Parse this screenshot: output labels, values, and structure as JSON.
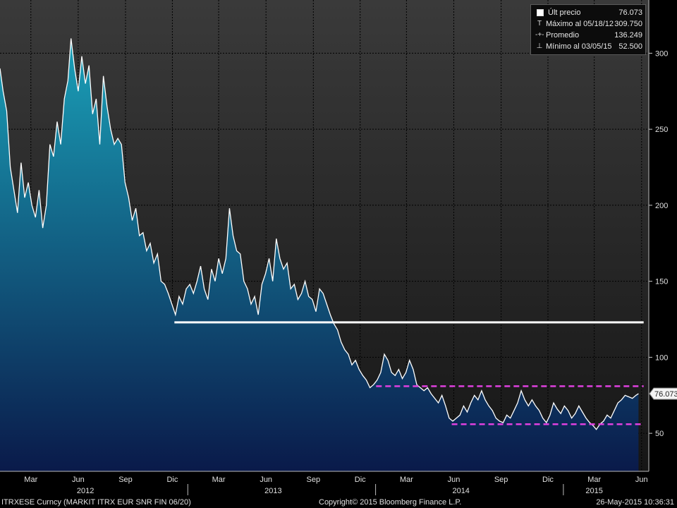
{
  "chart_data": {
    "type": "area",
    "x_unit": "date",
    "y_unit": "bp",
    "ylim": [
      25,
      335
    ],
    "y_ticks": [
      50,
      100,
      150,
      200,
      250,
      300
    ],
    "y_tick_labels": [
      "50",
      "100",
      "150",
      "200",
      "250",
      "300"
    ],
    "x_month_labels": [
      {
        "date": "2012-03-01",
        "label": "Mar"
      },
      {
        "date": "2012-06-01",
        "label": "Jun"
      },
      {
        "date": "2012-09-01",
        "label": "Sep"
      },
      {
        "date": "2012-12-01",
        "label": "Dic"
      },
      {
        "date": "2013-03-01",
        "label": "Mar"
      },
      {
        "date": "2013-06-01",
        "label": "Jun"
      },
      {
        "date": "2013-09-01",
        "label": "Sep"
      },
      {
        "date": "2013-12-01",
        "label": "Dic"
      },
      {
        "date": "2014-03-01",
        "label": "Mar"
      },
      {
        "date": "2014-06-01",
        "label": "Jun"
      },
      {
        "date": "2014-09-01",
        "label": "Sep"
      },
      {
        "date": "2014-12-01",
        "label": "Dic"
      },
      {
        "date": "2015-03-01",
        "label": "Mar"
      },
      {
        "date": "2015-06-01",
        "label": "Jun"
      }
    ],
    "x_year_labels": [
      {
        "date": "2012-06-15",
        "label": "2012"
      },
      {
        "date": "2013-06-15",
        "label": "2013"
      },
      {
        "date": "2014-06-15",
        "label": "2014"
      },
      {
        "date": "2015-03-01",
        "label": "2015"
      }
    ],
    "series": [
      {
        "name": "Últ precio",
        "color": "#ffffff",
        "area_gradient": [
          "#1aa0b8",
          "#0a1a4a"
        ],
        "points": [
          [
            "2012-01-01",
            290
          ],
          [
            "2012-01-07",
            275
          ],
          [
            "2012-01-14",
            262
          ],
          [
            "2012-01-21",
            225
          ],
          [
            "2012-01-28",
            210
          ],
          [
            "2012-02-04",
            195
          ],
          [
            "2012-02-11",
            228
          ],
          [
            "2012-02-18",
            205
          ],
          [
            "2012-02-25",
            215
          ],
          [
            "2012-03-03",
            200
          ],
          [
            "2012-03-10",
            192
          ],
          [
            "2012-03-17",
            210
          ],
          [
            "2012-03-24",
            185
          ],
          [
            "2012-03-31",
            200
          ],
          [
            "2012-04-07",
            240
          ],
          [
            "2012-04-14",
            232
          ],
          [
            "2012-04-21",
            255
          ],
          [
            "2012-04-28",
            240
          ],
          [
            "2012-05-05",
            270
          ],
          [
            "2012-05-12",
            282
          ],
          [
            "2012-05-18",
            309.75
          ],
          [
            "2012-05-25",
            290
          ],
          [
            "2012-06-01",
            275
          ],
          [
            "2012-06-08",
            298
          ],
          [
            "2012-06-15",
            280
          ],
          [
            "2012-06-22",
            292
          ],
          [
            "2012-06-29",
            260
          ],
          [
            "2012-07-06",
            270
          ],
          [
            "2012-07-13",
            240
          ],
          [
            "2012-07-20",
            285
          ],
          [
            "2012-07-27",
            265
          ],
          [
            "2012-08-03",
            250
          ],
          [
            "2012-08-10",
            240
          ],
          [
            "2012-08-17",
            244
          ],
          [
            "2012-08-24",
            240
          ],
          [
            "2012-08-31",
            215
          ],
          [
            "2012-09-07",
            205
          ],
          [
            "2012-09-14",
            190
          ],
          [
            "2012-09-21",
            198
          ],
          [
            "2012-09-28",
            180
          ],
          [
            "2012-10-05",
            182
          ],
          [
            "2012-10-12",
            170
          ],
          [
            "2012-10-19",
            175
          ],
          [
            "2012-10-26",
            162
          ],
          [
            "2012-11-02",
            168
          ],
          [
            "2012-11-09",
            150
          ],
          [
            "2012-11-16",
            148
          ],
          [
            "2012-11-23",
            142
          ],
          [
            "2012-11-30",
            135
          ],
          [
            "2012-12-07",
            128
          ],
          [
            "2012-12-14",
            140
          ],
          [
            "2012-12-21",
            135
          ],
          [
            "2012-12-28",
            145
          ],
          [
            "2013-01-04",
            148
          ],
          [
            "2013-01-11",
            142
          ],
          [
            "2013-01-18",
            150
          ],
          [
            "2013-01-25",
            160
          ],
          [
            "2013-02-01",
            145
          ],
          [
            "2013-02-08",
            138
          ],
          [
            "2013-02-15",
            158
          ],
          [
            "2013-02-22",
            150
          ],
          [
            "2013-03-01",
            165
          ],
          [
            "2013-03-08",
            155
          ],
          [
            "2013-03-15",
            165
          ],
          [
            "2013-03-22",
            198
          ],
          [
            "2013-03-29",
            180
          ],
          [
            "2013-04-05",
            170
          ],
          [
            "2013-04-12",
            168
          ],
          [
            "2013-04-19",
            150
          ],
          [
            "2013-04-26",
            145
          ],
          [
            "2013-05-03",
            135
          ],
          [
            "2013-05-10",
            140
          ],
          [
            "2013-05-17",
            128
          ],
          [
            "2013-05-24",
            148
          ],
          [
            "2013-05-31",
            155
          ],
          [
            "2013-06-07",
            165
          ],
          [
            "2013-06-14",
            150
          ],
          [
            "2013-06-21",
            178
          ],
          [
            "2013-06-28",
            165
          ],
          [
            "2013-07-05",
            158
          ],
          [
            "2013-07-12",
            162
          ],
          [
            "2013-07-19",
            145
          ],
          [
            "2013-07-26",
            148
          ],
          [
            "2013-08-02",
            138
          ],
          [
            "2013-08-09",
            142
          ],
          [
            "2013-08-16",
            150
          ],
          [
            "2013-08-23",
            140
          ],
          [
            "2013-08-30",
            138
          ],
          [
            "2013-09-06",
            130
          ],
          [
            "2013-09-13",
            145
          ],
          [
            "2013-09-20",
            142
          ],
          [
            "2013-09-27",
            135
          ],
          [
            "2013-10-04",
            128
          ],
          [
            "2013-10-11",
            122
          ],
          [
            "2013-10-18",
            118
          ],
          [
            "2013-10-25",
            110
          ],
          [
            "2013-11-01",
            105
          ],
          [
            "2013-11-08",
            102
          ],
          [
            "2013-11-15",
            95
          ],
          [
            "2013-11-22",
            98
          ],
          [
            "2013-11-29",
            92
          ],
          [
            "2013-12-06",
            88
          ],
          [
            "2013-12-13",
            85
          ],
          [
            "2013-12-20",
            80
          ],
          [
            "2013-12-27",
            82
          ],
          [
            "2014-01-03",
            85
          ],
          [
            "2014-01-10",
            90
          ],
          [
            "2014-01-17",
            102
          ],
          [
            "2014-01-24",
            98
          ],
          [
            "2014-01-31",
            90
          ],
          [
            "2014-02-07",
            88
          ],
          [
            "2014-02-14",
            92
          ],
          [
            "2014-02-21",
            86
          ],
          [
            "2014-02-28",
            90
          ],
          [
            "2014-03-07",
            98
          ],
          [
            "2014-03-14",
            92
          ],
          [
            "2014-03-21",
            82
          ],
          [
            "2014-03-28",
            80
          ],
          [
            "2014-04-04",
            78
          ],
          [
            "2014-04-11",
            80
          ],
          [
            "2014-04-18",
            76
          ],
          [
            "2014-04-25",
            73
          ],
          [
            "2014-05-02",
            70
          ],
          [
            "2014-05-09",
            75
          ],
          [
            "2014-05-16",
            68
          ],
          [
            "2014-05-23",
            60
          ],
          [
            "2014-05-30",
            58
          ],
          [
            "2014-06-06",
            60
          ],
          [
            "2014-06-13",
            62
          ],
          [
            "2014-06-20",
            68
          ],
          [
            "2014-06-27",
            64
          ],
          [
            "2014-07-04",
            70
          ],
          [
            "2014-07-11",
            75
          ],
          [
            "2014-07-18",
            72
          ],
          [
            "2014-07-25",
            78
          ],
          [
            "2014-08-01",
            72
          ],
          [
            "2014-08-08",
            68
          ],
          [
            "2014-08-15",
            65
          ],
          [
            "2014-08-22",
            60
          ],
          [
            "2014-08-29",
            58
          ],
          [
            "2014-09-05",
            57
          ],
          [
            "2014-09-12",
            62
          ],
          [
            "2014-09-19",
            60
          ],
          [
            "2014-09-26",
            65
          ],
          [
            "2014-10-03",
            70
          ],
          [
            "2014-10-10",
            78
          ],
          [
            "2014-10-17",
            72
          ],
          [
            "2014-10-24",
            68
          ],
          [
            "2014-10-31",
            72
          ],
          [
            "2014-11-07",
            68
          ],
          [
            "2014-11-14",
            65
          ],
          [
            "2014-11-21",
            60
          ],
          [
            "2014-11-28",
            57
          ],
          [
            "2014-12-05",
            62
          ],
          [
            "2014-12-12",
            70
          ],
          [
            "2014-12-19",
            66
          ],
          [
            "2014-12-26",
            63
          ],
          [
            "2015-01-02",
            68
          ],
          [
            "2015-01-09",
            65
          ],
          [
            "2015-01-16",
            60
          ],
          [
            "2015-01-23",
            63
          ],
          [
            "2015-01-30",
            68
          ],
          [
            "2015-02-06",
            64
          ],
          [
            "2015-02-13",
            60
          ],
          [
            "2015-02-20",
            57
          ],
          [
            "2015-02-27",
            55
          ],
          [
            "2015-03-05",
            52.5
          ],
          [
            "2015-03-12",
            56
          ],
          [
            "2015-03-19",
            58
          ],
          [
            "2015-03-26",
            62
          ],
          [
            "2015-04-02",
            60
          ],
          [
            "2015-04-09",
            65
          ],
          [
            "2015-04-16",
            70
          ],
          [
            "2015-04-23",
            72
          ],
          [
            "2015-04-30",
            75
          ],
          [
            "2015-05-07",
            74
          ],
          [
            "2015-05-14",
            73
          ],
          [
            "2015-05-21",
            75
          ],
          [
            "2015-05-26",
            76.073
          ]
        ]
      }
    ],
    "lines": [
      {
        "kind": "support",
        "color": "#ffffff",
        "dashed": false,
        "y": 123,
        "x0": "2012-12-05",
        "x1": "2015-06-05"
      },
      {
        "kind": "channel-top",
        "color": "#e040e0",
        "dashed": true,
        "y": 81,
        "x0": "2014-01-01",
        "x1": "2015-06-05"
      },
      {
        "kind": "channel-bottom",
        "color": "#e040e0",
        "dashed": true,
        "y": 56,
        "x0": "2014-05-28",
        "x1": "2015-06-05"
      }
    ],
    "last_value_label": "76.073"
  },
  "legend": {
    "rows": [
      {
        "mark": "box",
        "label": "Últ precio",
        "value": "76.073"
      },
      {
        "mark": "T",
        "label": "Máximo al 05/18/12",
        "value": "309.750"
      },
      {
        "mark": "-+-",
        "label": "Promedio",
        "value": "136.249"
      },
      {
        "mark": "⊥",
        "label": "Mínimo al 03/05/15",
        "value": "52.500"
      }
    ]
  },
  "footer": {
    "left": "ITRXESE Curncy (MARKIT ITRX EUR SNR FIN 06/20)",
    "center": "Copyright© 2015 Bloomberg Finance L.P.",
    "right": "26-May-2015 10:36:31"
  }
}
